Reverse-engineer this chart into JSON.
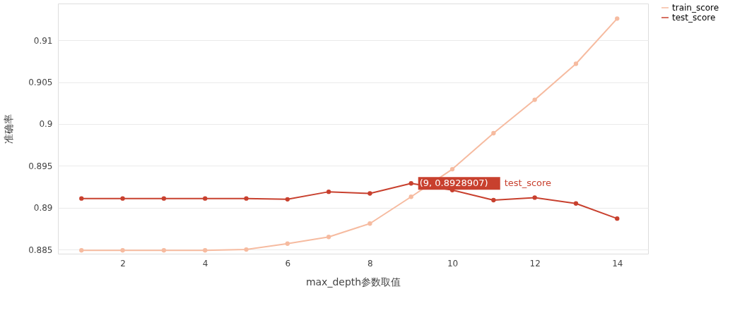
{
  "chart_data": {
    "type": "line",
    "xlabel": "max_depth参数取值",
    "ylabel": "准确率",
    "x": [
      1,
      2,
      3,
      4,
      5,
      6,
      7,
      8,
      9,
      10,
      11,
      12,
      13,
      14
    ],
    "series": [
      {
        "name": "train_score",
        "color": "#f6bba0",
        "values": [
          0.8849,
          0.8849,
          0.8849,
          0.8849,
          0.885,
          0.8857,
          0.8865,
          0.8881,
          0.8913,
          0.8946,
          0.8989,
          0.9029,
          0.9072,
          0.9126
        ]
      },
      {
        "name": "test_score",
        "color": "#c8402e",
        "values": [
          0.8911,
          0.8911,
          0.8911,
          0.8911,
          0.8911,
          0.891,
          0.8919,
          0.8917,
          0.8929,
          0.8921,
          0.8909,
          0.8912,
          0.8905,
          0.8887
        ]
      }
    ],
    "annotations": [
      {
        "text": "(9, 0.8928907)",
        "x": 9,
        "y": 0.8929
      },
      "test_score"
    ],
    "xlim": [
      0.43,
      14.75
    ],
    "ylim": [
      0.8845,
      0.9144
    ],
    "xticks": [
      2,
      4,
      6,
      8,
      10,
      12,
      14
    ],
    "yticks": [
      0.885,
      0.89,
      0.895,
      0.9,
      0.905,
      0.91
    ],
    "grid": "y",
    "legend": "top right",
    "marker": "circle",
    "line_style": "solid"
  }
}
